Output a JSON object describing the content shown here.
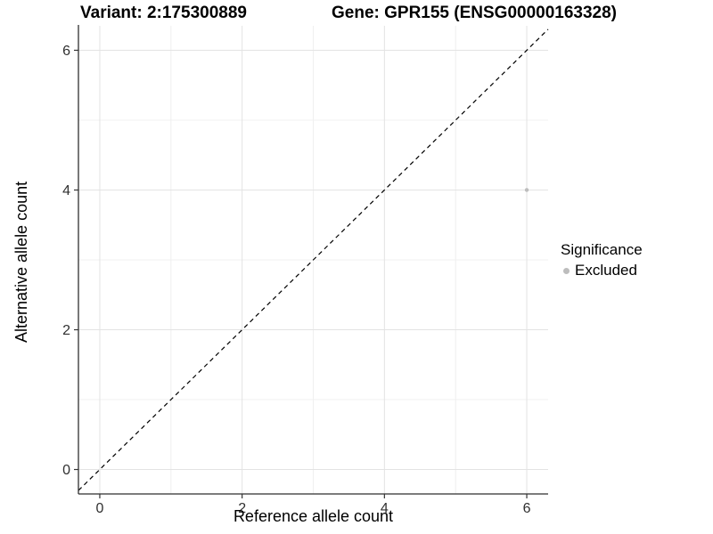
{
  "chart_data": {
    "type": "scatter",
    "title_left": "Variant: 2:175300889",
    "title_right": "Gene: GPR155 (ENSG00000163328)",
    "xlabel": "Reference allele count",
    "ylabel": "Alternative allele count",
    "xlim": [
      -0.3,
      6.3
    ],
    "ylim": [
      -0.35,
      6.35
    ],
    "x_ticks": [
      0,
      2,
      4,
      6
    ],
    "y_ticks": [
      0,
      2,
      4,
      6
    ],
    "x_minor_ticks": [
      1,
      3,
      5
    ],
    "y_minor_ticks": [
      1,
      3,
      5
    ],
    "grid": true,
    "reference_line": {
      "type": "identity",
      "style": "dashed",
      "color": "#000000"
    },
    "points": [
      {
        "x": 6,
        "y": 4,
        "series": "Excluded"
      }
    ],
    "legend": {
      "title": "Significance",
      "position": "right",
      "entries": [
        {
          "label": "Excluded",
          "color": "#bdbdbd"
        }
      ]
    },
    "colors": {
      "background": "#ffffff",
      "point": "#bdbdbd",
      "grid_major": "#e3e3e3",
      "grid_minor": "#f0f0f0",
      "axis_line": "#2f2f2f",
      "tick_mark": "#333333",
      "tick_label": "#303030"
    }
  }
}
